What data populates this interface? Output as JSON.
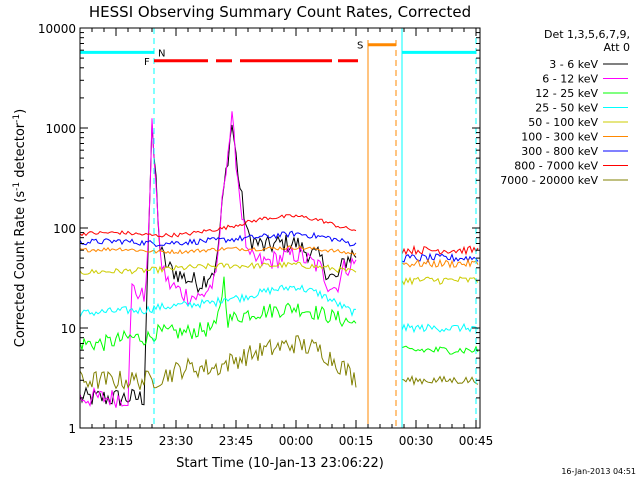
{
  "chart_data": {
    "type": "line",
    "title": "HESSI Observing Summary Count Rates, Corrected",
    "xlabel": "Start Time (10-Jan-13 23:06:22)",
    "ylabel_main": "Corrected Count Rate (s",
    "ylabel_sup1": "-1",
    "ylabel_mid": " detector",
    "ylabel_sup2": "-1",
    "ylabel_end": ")",
    "ylog": true,
    "ylim": [
      1,
      10000
    ],
    "xlim_minutes": [
      0,
      100
    ],
    "x_ticks": [
      {
        "m": 9,
        "label": "23:15"
      },
      {
        "m": 24,
        "label": "23:30"
      },
      {
        "m": 39,
        "label": "23:45"
      },
      {
        "m": 54,
        "label": "00:00"
      },
      {
        "m": 69,
        "label": "00:15"
      },
      {
        "m": 84,
        "label": "00:30"
      },
      {
        "m": 99,
        "label": "00:45"
      }
    ],
    "y_ticks": [
      {
        "v": 1,
        "label": "1"
      },
      {
        "v": 10,
        "label": "10"
      },
      {
        "v": 100,
        "label": "100"
      },
      {
        "v": 1000,
        "label": "1000"
      },
      {
        "v": 10000,
        "label": "10000"
      }
    ],
    "legend": {
      "header1": "Det 1,3,5,6,7,9,",
      "header2": "Att 0",
      "position": "right"
    },
    "series": [
      {
        "name": "3 - 6 keV",
        "color": "#000000",
        "jitter": 0.1,
        "points": [
          [
            0,
            2
          ],
          [
            10,
            2
          ],
          [
            16,
            2
          ],
          [
            17,
            60
          ],
          [
            18,
            900
          ],
          [
            19,
            300
          ],
          [
            20,
            60
          ],
          [
            22,
            40
          ],
          [
            26,
            32
          ],
          [
            30,
            28
          ],
          [
            34,
            40
          ],
          [
            36,
            250
          ],
          [
            38,
            1100
          ],
          [
            40,
            250
          ],
          [
            42,
            80
          ],
          [
            46,
            65
          ],
          [
            50,
            70
          ],
          [
            54,
            70
          ],
          [
            56,
            60
          ],
          [
            60,
            50
          ],
          [
            62,
            35
          ],
          [
            64,
            30
          ],
          [
            66,
            45
          ],
          [
            68,
            55
          ],
          [
            69,
            55
          ]
        ]
      },
      {
        "name": "6 - 12 keV",
        "color": "#ff00ff",
        "jitter": 0.1,
        "points": [
          [
            0,
            2
          ],
          [
            12,
            2
          ],
          [
            13,
            25
          ],
          [
            16,
            20
          ],
          [
            17,
            60
          ],
          [
            18,
            1000
          ],
          [
            19,
            300
          ],
          [
            20,
            50
          ],
          [
            22,
            28
          ],
          [
            26,
            22
          ],
          [
            30,
            20
          ],
          [
            34,
            30
          ],
          [
            36,
            300
          ],
          [
            38,
            1200
          ],
          [
            40,
            200
          ],
          [
            42,
            50
          ],
          [
            46,
            45
          ],
          [
            50,
            50
          ],
          [
            54,
            55
          ],
          [
            56,
            50
          ],
          [
            60,
            40
          ],
          [
            62,
            28
          ],
          [
            64,
            25
          ],
          [
            66,
            40
          ],
          [
            69,
            45
          ]
        ]
      },
      {
        "name": "12 - 25 keV",
        "color": "#00ff00",
        "jitter": 0.08,
        "points": [
          [
            0,
            7
          ],
          [
            6,
            7
          ],
          [
            12,
            8
          ],
          [
            16,
            8
          ],
          [
            17,
            8
          ],
          [
            19,
            9
          ],
          [
            26,
            9
          ],
          [
            34,
            10
          ],
          [
            36,
            30
          ],
          [
            37,
            12
          ],
          [
            42,
            14
          ],
          [
            48,
            15
          ],
          [
            54,
            16
          ],
          [
            60,
            14
          ],
          [
            66,
            12
          ],
          [
            69,
            11
          ]
        ]
      },
      {
        "name": "25 - 50 keV",
        "color": "#00ffff",
        "jitter": 0.04,
        "points": [
          [
            0,
            14
          ],
          [
            12,
            15
          ],
          [
            16,
            15
          ],
          [
            19,
            16
          ],
          [
            26,
            17
          ],
          [
            34,
            18
          ],
          [
            36,
            20
          ],
          [
            40,
            20
          ],
          [
            48,
            24
          ],
          [
            54,
            26
          ],
          [
            60,
            22
          ],
          [
            66,
            16
          ],
          [
            69,
            14
          ]
        ]
      },
      {
        "name": "50 - 100 keV",
        "color": "#cccc00",
        "jitter": 0.03,
        "points": [
          [
            0,
            36
          ],
          [
            10,
            37
          ],
          [
            19,
            38
          ],
          [
            26,
            40
          ],
          [
            36,
            42
          ],
          [
            46,
            42
          ],
          [
            54,
            43
          ],
          [
            62,
            40
          ],
          [
            69,
            36
          ]
        ]
      },
      {
        "name": "100 - 300 keV",
        "color": "#ff8800",
        "jitter": 0.02,
        "points": [
          [
            0,
            60
          ],
          [
            10,
            62
          ],
          [
            19,
            58
          ],
          [
            26,
            58
          ],
          [
            36,
            62
          ],
          [
            46,
            62
          ],
          [
            54,
            64
          ],
          [
            62,
            60
          ],
          [
            69,
            55
          ]
        ]
      },
      {
        "name": "300 - 800 keV",
        "color": "#0000ff",
        "jitter": 0.03,
        "points": [
          [
            0,
            72
          ],
          [
            10,
            74
          ],
          [
            19,
            70
          ],
          [
            26,
            72
          ],
          [
            36,
            76
          ],
          [
            46,
            82
          ],
          [
            54,
            88
          ],
          [
            62,
            80
          ],
          [
            69,
            68
          ]
        ]
      },
      {
        "name": "800 - 7000 keV",
        "color": "#ff0000",
        "jitter": 0.02,
        "points": [
          [
            0,
            88
          ],
          [
            10,
            90
          ],
          [
            19,
            84
          ],
          [
            26,
            86
          ],
          [
            36,
            100
          ],
          [
            46,
            125
          ],
          [
            54,
            132
          ],
          [
            60,
            120
          ],
          [
            66,
            100
          ],
          [
            69,
            95
          ]
        ]
      },
      {
        "name": "7000 - 20000 keV",
        "color": "#808000",
        "jitter": 0.1,
        "points": [
          [
            0,
            3
          ],
          [
            12,
            3
          ],
          [
            18,
            3
          ],
          [
            26,
            4
          ],
          [
            34,
            4
          ],
          [
            40,
            5
          ],
          [
            46,
            6
          ],
          [
            54,
            7
          ],
          [
            60,
            6
          ],
          [
            66,
            4
          ],
          [
            69,
            3
          ]
        ]
      }
    ],
    "after_gap": [
      {
        "color": "#ff0000",
        "value": 60
      },
      {
        "color": "#0000ff",
        "value": 50
      },
      {
        "color": "#ff8800",
        "value": 44
      },
      {
        "color": "#cccc00",
        "value": 30
      },
      {
        "color": "#00ffff",
        "value": 10
      },
      {
        "color": "#00ff00",
        "value": 6
      },
      {
        "color": "#808000",
        "value": 3
      }
    ],
    "annotations": {
      "night_label": "N",
      "flare_label": "F",
      "saa_label": "S",
      "night_color": "#00ffff",
      "flare_color": "#ff0000",
      "saa_color": "#ff8800",
      "night_level": 5700,
      "flare_level": 4700,
      "saa_level": 6800,
      "night_bars": [
        [
          0,
          18.5
        ],
        [
          80.5,
          99
        ]
      ],
      "flare_bars": [
        [
          18.5,
          32
        ],
        [
          34,
          38
        ],
        [
          40,
          63
        ],
        [
          64.5,
          69.5
        ]
      ],
      "saa_bar": [
        72,
        79
      ],
      "night_boundaries": [
        0,
        18.5,
        80.5,
        99
      ],
      "saa_boundaries": [
        72,
        79
      ]
    },
    "grid": false
  },
  "footer": {
    "date_stamp": "16-Jan-2013 04:51"
  }
}
